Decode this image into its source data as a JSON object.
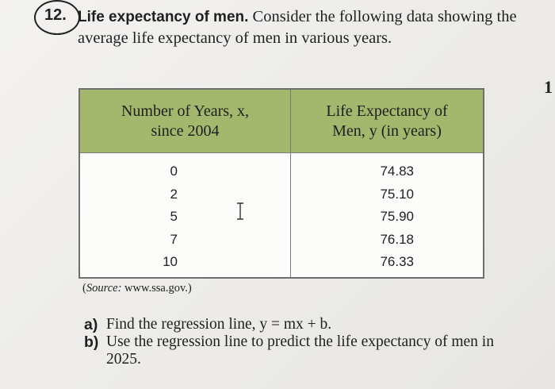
{
  "problem": {
    "number": "12.",
    "title": "Life expectancy of men.",
    "text": " Consider the following data showing the average life expectancy of men in various years."
  },
  "margin_number": "1",
  "table": {
    "headers": {
      "x": "Number of Years, x, since 2004",
      "y": "Life Expectancy of Men, y (in years)"
    },
    "x_values": [
      "0",
      "2",
      "5",
      "7",
      "10"
    ],
    "y_values": [
      "74.83",
      "75.10",
      "75.90",
      "76.18",
      "76.33"
    ],
    "header_color": "#a3b86c"
  },
  "source": {
    "label": "Source:",
    "text": "www.ssa.gov."
  },
  "questions": [
    {
      "label": "a)",
      "text": "Find the regression line, y = mx + b."
    },
    {
      "label": "b)",
      "text": "Use the regression line to predict the life expectancy of men in 2025."
    }
  ],
  "cursor": "text-cursor-icon"
}
